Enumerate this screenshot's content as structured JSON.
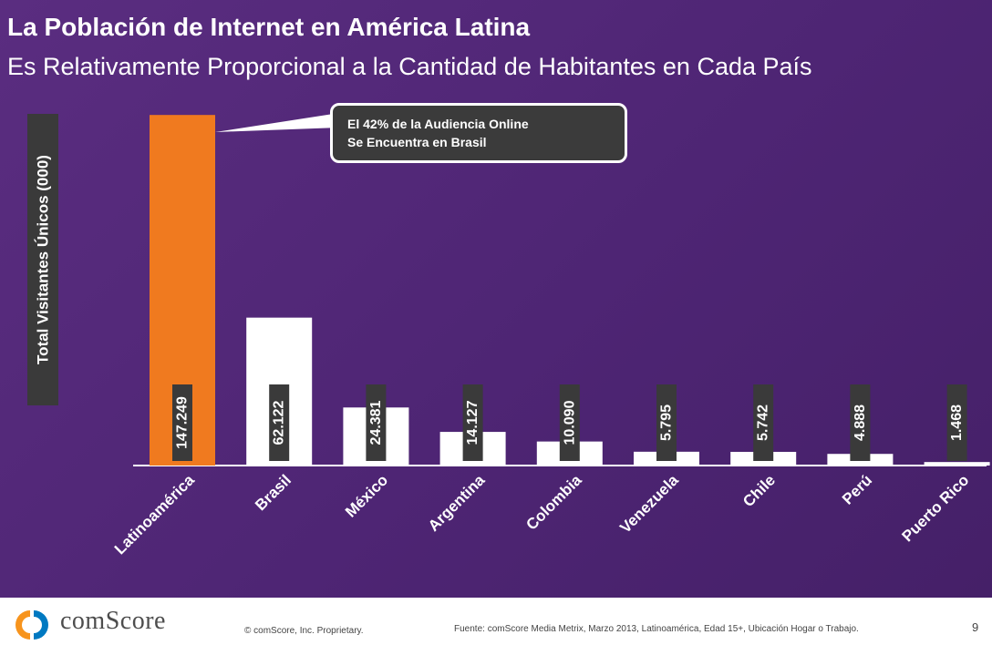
{
  "slide": {
    "title": "La Población de Internet en América Latina",
    "subtitle": "Es Relativamente Proporcional a la Cantidad de Habitantes en Cada País",
    "background_color": "#4e2574"
  },
  "callout": {
    "line1": "El 42% de la Audiencia Online",
    "line2": "Se Encuentra en Brasil"
  },
  "chart_data": {
    "type": "bar",
    "title": "",
    "xlabel": "",
    "ylabel": "Total Visitantes Únicos (000)",
    "categories": [
      "Latinoamérica",
      "Brasil",
      "México",
      "Argentina",
      "Colombia",
      "Venezuela",
      "Chile",
      "Perú",
      "Puerto Rico"
    ],
    "values": [
      147249,
      62122,
      24381,
      14127,
      10090,
      5795,
      5742,
      4888,
      1468
    ],
    "value_labels": [
      "147.249",
      "62.122",
      "24.381",
      "14.127",
      "10.090",
      "5.795",
      "5.742",
      "4.888",
      "1.468"
    ],
    "ylim": [
      0,
      150000
    ],
    "grid": false,
    "legend": "none",
    "colors": {
      "highlight": "#f07a1f",
      "bar": "#ffffff",
      "label_bg": "#3a3a3a",
      "label_text": "#ffffff"
    }
  },
  "footer": {
    "logo_text": "comScore",
    "copyright": "© comScore, Inc.   Proprietary.",
    "source": "Fuente: comScore Media Metrix, Marzo 2013, Latinoamérica, Edad 15+, Ubicación Hogar o Trabajo.",
    "page_number": "9",
    "logo_colors": [
      "#f7941d",
      "#0079c1"
    ]
  }
}
